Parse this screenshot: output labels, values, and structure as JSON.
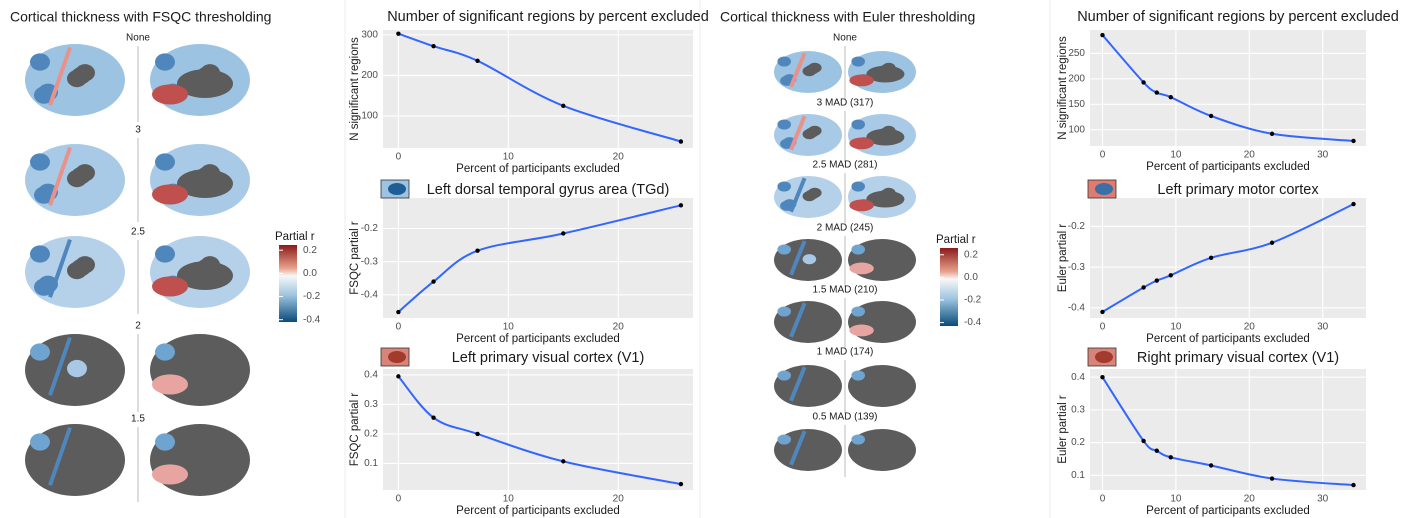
{
  "brain_panels": [
    {
      "title": "Cortical thickness with FSQC thresholding",
      "rows": [
        "None",
        "3",
        "2.5",
        "2",
        "1.5"
      ],
      "colorbar": {
        "title": "Partial r",
        "limits": [
          -0.42,
          0.245
        ],
        "ticks": [
          0.2,
          {
            "value": 0,
            "label": "0.0"
          },
          -0.2,
          -0.4
        ]
      }
    },
    {
      "title": "Cortical thickness with Euler thresholding",
      "rows": [
        "None",
        "3 MAD (317)",
        "2.5 MAD (281)",
        "2 MAD (245)",
        "1.5 MAD (210)",
        "1 MAD (174)",
        "0.5 MAD (139)"
      ],
      "colorbar": {
        "title": "Partial r",
        "limits": [
          -0.43,
          0.26
        ],
        "ticks": [
          0.2,
          {
            "value": 0,
            "label": "0.0"
          },
          -0.2,
          -0.4
        ]
      }
    }
  ],
  "chart_data": [
    {
      "type": "line",
      "title": "Number of significant regions by percent excluded",
      "xlabel": "Percent of participants excluded",
      "ylabel": "N significant regions",
      "x": [
        0,
        3.2,
        7.2,
        15,
        25.7
      ],
      "values": [
        303,
        272,
        236,
        125,
        37
      ],
      "color": "#3366ff",
      "xlim": [
        -1.4,
        26.8
      ],
      "xticks": [
        0,
        10,
        20
      ],
      "ylim": [
        21,
        312
      ],
      "yticks": [
        100,
        200,
        300
      ],
      "grid": true
    },
    {
      "type": "line",
      "title": "Left dorsal temporal gyrus area (TGd)",
      "xlabel": "Percent of participants excluded",
      "ylabel": "FSQC partial r",
      "x": [
        0,
        3.2,
        7.2,
        15,
        25.7
      ],
      "values": [
        -0.452,
        -0.36,
        -0.267,
        -0.215,
        -0.13
      ],
      "color": "#3366ff",
      "xlim": [
        -1.4,
        26.8
      ],
      "xticks": [
        0,
        10,
        20
      ],
      "ylim": [
        -0.47,
        -0.108
      ],
      "yticks": [
        -0.2,
        -0.3,
        -0.4
      ],
      "grid": true
    },
    {
      "type": "line",
      "title": "Left primary visual cortex (V1)",
      "xlabel": "Percent of participants excluded",
      "ylabel": "FSQC partial r",
      "x": [
        0,
        3.2,
        7.2,
        15,
        25.7
      ],
      "values": [
        0.395,
        0.255,
        0.2,
        0.107,
        0.03
      ],
      "color": "#3366ff",
      "xlim": [
        -1.4,
        26.8
      ],
      "xticks": [
        0,
        10,
        20
      ],
      "ylim": [
        0.01,
        0.42
      ],
      "yticks": [
        0.1,
        0.2,
        0.3,
        0.4
      ],
      "grid": true
    },
    {
      "type": "line",
      "title": "Number of significant regions by percent excluded",
      "xlabel": "Percent of participants excluded",
      "ylabel": "N significant regions",
      "x": [
        0,
        5.6,
        7.4,
        9.3,
        14.8,
        23.1,
        34.2
      ],
      "values": [
        286,
        193,
        173,
        164,
        127,
        92,
        78
      ],
      "color": "#3366ff",
      "xlim": [
        -1.7,
        35.9
      ],
      "xticks": [
        0,
        10,
        20,
        30
      ],
      "ylim": [
        68,
        296
      ],
      "yticks": [
        100,
        150,
        200,
        250
      ],
      "grid": true
    },
    {
      "type": "line",
      "title": "Left primary motor cortex",
      "xlabel": "Percent of participants excluded",
      "ylabel": "Euler partial r",
      "x": [
        0,
        5.6,
        7.4,
        9.3,
        14.8,
        23.1,
        34.2
      ],
      "values": [
        -0.41,
        -0.35,
        -0.333,
        -0.32,
        -0.277,
        -0.24,
        -0.145
      ],
      "color": "#3366ff",
      "xlim": [
        -1.7,
        35.9
      ],
      "xticks": [
        0,
        10,
        20,
        30
      ],
      "ylim": [
        -0.425,
        -0.13
      ],
      "yticks": [
        -0.2,
        -0.3,
        -0.4
      ],
      "grid": true
    },
    {
      "type": "line",
      "title": "Right primary visual cortex (V1)",
      "xlabel": "Percent of participants excluded",
      "ylabel": "Euler partial r",
      "x": [
        0,
        5.6,
        7.4,
        9.3,
        14.8,
        23.1,
        34.2
      ],
      "values": [
        0.4,
        0.205,
        0.175,
        0.155,
        0.13,
        0.09,
        0.07
      ],
      "color": "#3366ff",
      "xlim": [
        -1.7,
        35.9
      ],
      "xticks": [
        0,
        10,
        20,
        30
      ],
      "ylim": [
        0.055,
        0.425
      ],
      "yticks": [
        0.1,
        0.2,
        0.3,
        0.4
      ],
      "grid": true
    }
  ]
}
